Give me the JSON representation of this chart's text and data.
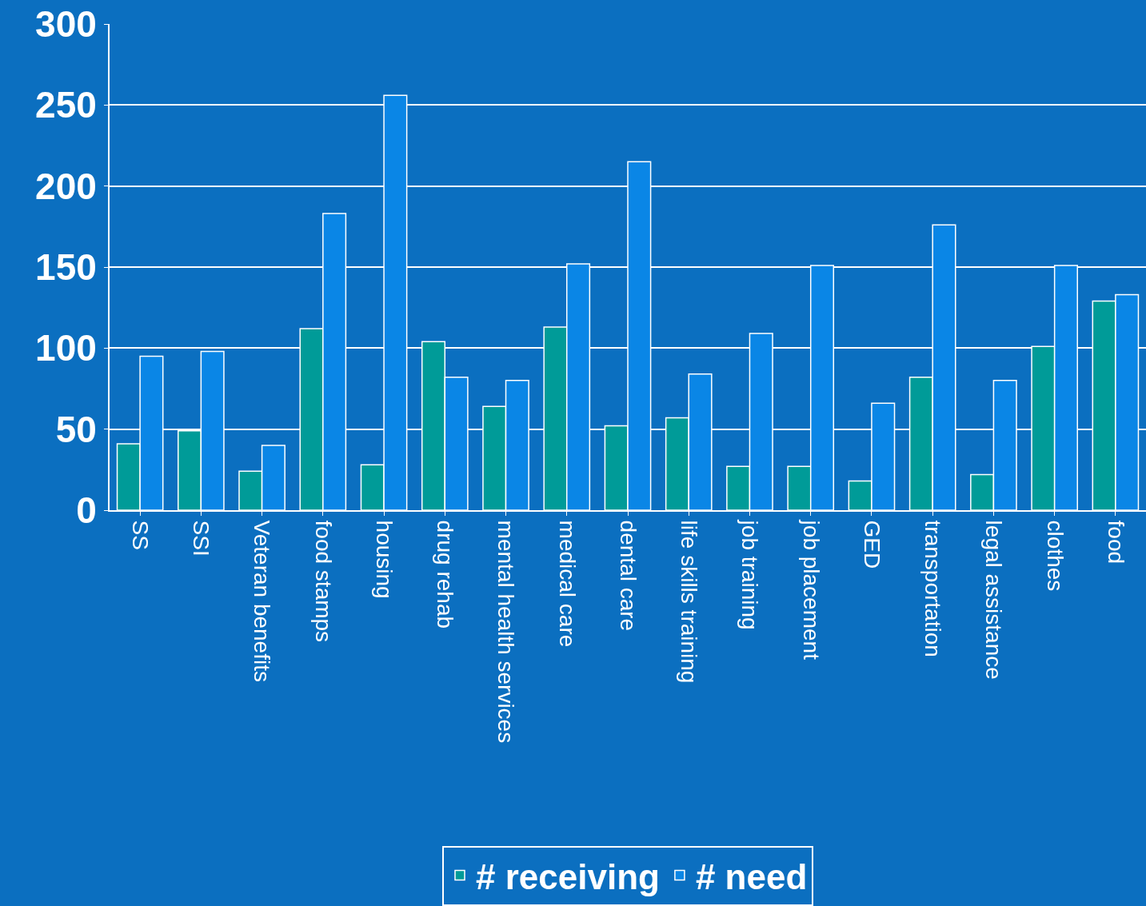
{
  "chart_data": {
    "type": "bar",
    "categories": [
      "SS",
      "SSI",
      "Veteran benefits",
      "food stamps",
      "housing",
      "drug rehab",
      "mental health services",
      "medical care",
      "dental care",
      "life skills training",
      "job training",
      "job placement",
      "GED",
      "transportation",
      "legal assistance",
      "clothes",
      "food"
    ],
    "series": [
      {
        "name": "# receiving",
        "color": "#009b98",
        "values": [
          41,
          49,
          24,
          112,
          28,
          104,
          64,
          113,
          52,
          57,
          27,
          27,
          18,
          82,
          22,
          101,
          129
        ]
      },
      {
        "name": "# need",
        "color": "#0a86e6",
        "values": [
          95,
          98,
          40,
          183,
          256,
          82,
          80,
          152,
          215,
          84,
          109,
          151,
          66,
          176,
          80,
          151,
          133
        ]
      }
    ],
    "ylim": [
      0,
      300
    ],
    "yticks": [
      0,
      50,
      100,
      150,
      200,
      250,
      300
    ],
    "grid": "y",
    "legend": "bottom"
  }
}
